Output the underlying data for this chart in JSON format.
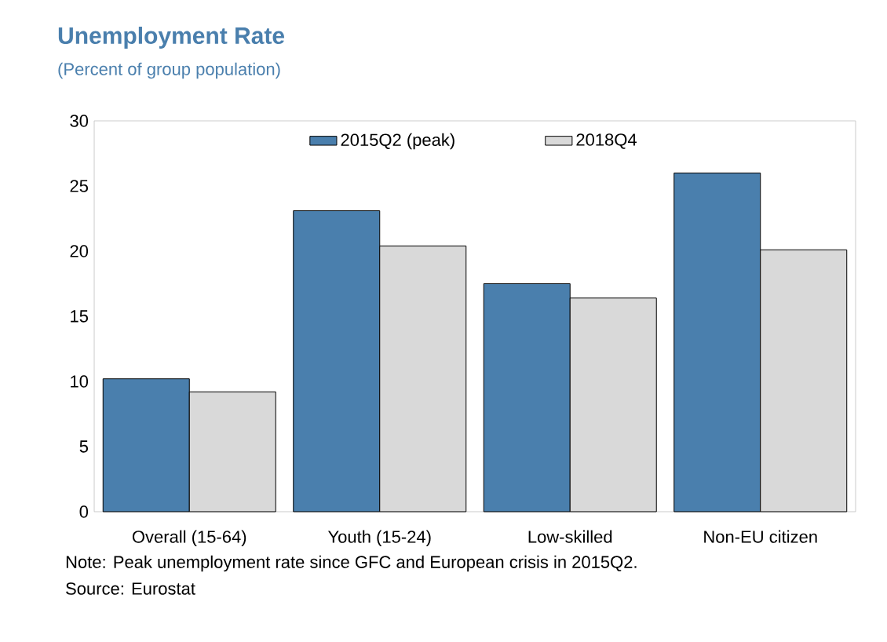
{
  "chart_data": {
    "type": "bar",
    "title": "Unemployment Rate",
    "subtitle": "(Percent of group population)",
    "categories": [
      "Overall (15-64)",
      "Youth (15-24)",
      "Low-skilled",
      "Non-EU citizen"
    ],
    "series": [
      {
        "name": "2015Q2 (peak)",
        "color": "#4a7fad",
        "values": [
          10.2,
          23.1,
          17.5,
          26.0
        ]
      },
      {
        "name": "2018Q4",
        "color": "#d9d9d9",
        "values": [
          9.2,
          20.4,
          16.4,
          20.1
        ]
      }
    ],
    "ylim": [
      0,
      30
    ],
    "yticks": [
      0,
      5,
      10,
      15,
      20,
      25,
      30
    ],
    "grid": false,
    "legend": "top",
    "annotations": [
      "Note: Peak unemployment rate since GFC and European crisis in 2015Q2.",
      "Source: Eurostat"
    ]
  }
}
